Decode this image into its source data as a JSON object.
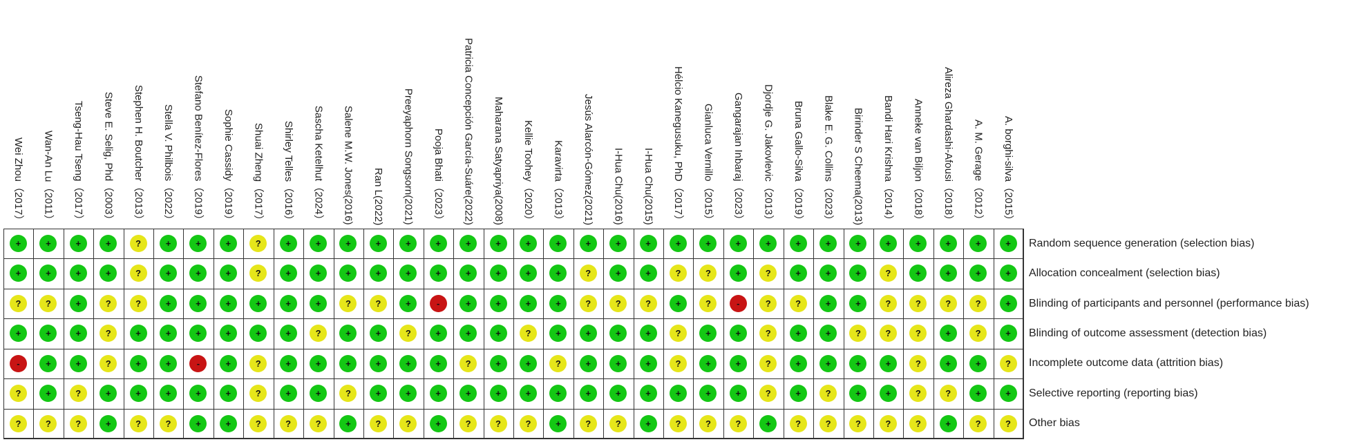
{
  "chart_data": {
    "type": "table",
    "colors": {
      "+": "#14c814",
      "?": "#e6e61a",
      "-": "#c81414"
    },
    "studies": [
      "Wei Zhou（2017）",
      "Wan-An Lu（2011）",
      "Tseng-Hau Tseng（2017）",
      "Steve E. Selig, Phd（2003）",
      "Stephen H. Boutcher（2013）",
      "Stella V. Philbois（2022）",
      "Stefano Benítez-Flores（2019）",
      "Sophie Cassidy（2019）",
      "Shuai Zheng（2017）",
      "Shirley Telles（2016）",
      "Sascha Ketelhut（2024）",
      "Salene M.W. Jones(2016)",
      "Ran L(2022)",
      "Preeyaphorn Songsorn(2021)",
      "Pooja Bhati（2023）",
      "Patricia Concepción García-Suáre(2022)",
      "Maharana Satyapriya(2008)",
      "Kellie Toohey（2020）",
      "Karavirta（2013）",
      "Jesús Alarcón-Gómez(2021)",
      "I-Hua Chu(2016)",
      "I-Hua Chu(2015)",
      "Hélcio Kanegusuku, PhD（2017）",
      "Gianluca Vernillo（2015）",
      "Gangarajan Inbaraj（2023）",
      "Djordje G. Jakovlevic（2013）",
      "Bruna Gallo-Silva（2019）",
      "Blake E. G. Collins（2023）",
      "Birinder S Cheema(2013)",
      "Bandi Hari Krishna（2014）",
      "Anneke van Biljon（2018）",
      "Alireza Ghardashi-Afousi（2018）",
      "A. M. Gerage（2012）",
      "A. borghi-silva（2015）"
    ],
    "domains": [
      "Random sequence generation (selection bias)",
      "Allocation concealment (selection bias)",
      "Blinding of participants and personnel (performance bias)",
      "Blinding of outcome assessment (detection bias)",
      "Incomplete outcome data (attrition bias)",
      "Selective reporting (reporting bias)",
      "Other bias"
    ],
    "judgements": [
      [
        "+",
        "+",
        "+",
        "+",
        "?",
        "+",
        "+",
        "+",
        "?",
        "+",
        "+",
        "+",
        "+",
        "+",
        "+",
        "+",
        "+",
        "+",
        "+",
        "+",
        "+",
        "+",
        "+",
        "+",
        "+",
        "+",
        "+",
        "+",
        "+",
        "+",
        "+",
        "+",
        "+",
        "+"
      ],
      [
        "+",
        "+",
        "+",
        "+",
        "?",
        "+",
        "+",
        "+",
        "?",
        "+",
        "+",
        "+",
        "+",
        "+",
        "+",
        "+",
        "+",
        "+",
        "+",
        "?",
        "+",
        "+",
        "?",
        "?",
        "+",
        "?",
        "+",
        "+",
        "+",
        "?",
        "+",
        "+",
        "+",
        "+"
      ],
      [
        "?",
        "?",
        "+",
        "?",
        "?",
        "+",
        "+",
        "+",
        "+",
        "+",
        "+",
        "?",
        "?",
        "+",
        "-",
        "+",
        "+",
        "+",
        "+",
        "?",
        "?",
        "?",
        "+",
        "?",
        "-",
        "?",
        "?",
        "+",
        "+",
        "?",
        "?",
        "?",
        "?",
        "+"
      ],
      [
        "+",
        "+",
        "+",
        "?",
        "+",
        "+",
        "+",
        "+",
        "+",
        "+",
        "?",
        "+",
        "+",
        "?",
        "+",
        "+",
        "+",
        "?",
        "+",
        "+",
        "+",
        "+",
        "?",
        "+",
        "+",
        "?",
        "+",
        "+",
        "?",
        "?",
        "?",
        "+",
        "?",
        "+"
      ],
      [
        "-",
        "+",
        "+",
        "?",
        "+",
        "+",
        "-",
        "+",
        "?",
        "+",
        "+",
        "+",
        "+",
        "+",
        "+",
        "?",
        "+",
        "+",
        "?",
        "+",
        "+",
        "+",
        "?",
        "+",
        "+",
        "?",
        "+",
        "+",
        "+",
        "+",
        "?",
        "+",
        "+",
        "?"
      ],
      [
        "?",
        "+",
        "?",
        "+",
        "+",
        "+",
        "+",
        "+",
        "?",
        "+",
        "+",
        "?",
        "+",
        "+",
        "+",
        "+",
        "+",
        "+",
        "+",
        "+",
        "+",
        "+",
        "+",
        "+",
        "+",
        "?",
        "+",
        "?",
        "+",
        "+",
        "?",
        "?",
        "+",
        "+"
      ],
      [
        "?",
        "?",
        "?",
        "+",
        "?",
        "?",
        "+",
        "+",
        "?",
        "?",
        "?",
        "+",
        "?",
        "?",
        "+",
        "?",
        "?",
        "?",
        "+",
        "?",
        "?",
        "+",
        "?",
        "?",
        "?",
        "+",
        "?",
        "?",
        "?",
        "?",
        "?",
        "+",
        "?",
        "?"
      ]
    ]
  }
}
